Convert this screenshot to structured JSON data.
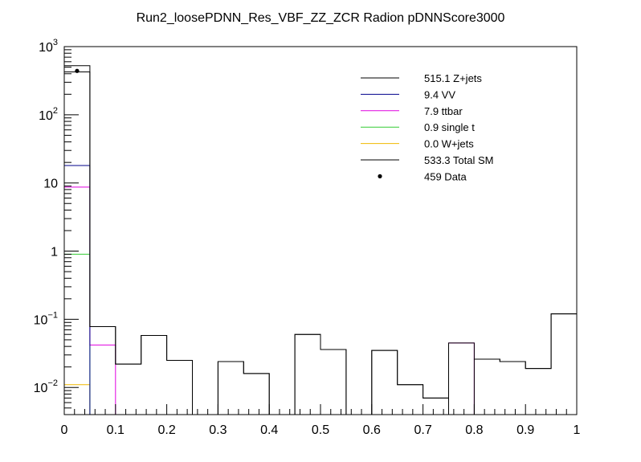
{
  "chart_data": {
    "type": "histogram",
    "title": "Run2_loosePDNN_Res_VBF_ZZ_ZCR Radion  pDNNScore3000",
    "xlabel": "",
    "ylabel": "",
    "xlim": [
      0,
      1
    ],
    "ylim": [
      0.004,
      1000
    ],
    "yscale": "log",
    "x_ticks": [
      "0",
      "0.1",
      "0.2",
      "0.3",
      "0.4",
      "0.5",
      "0.6",
      "0.7",
      "0.8",
      "0.9",
      "1"
    ],
    "y_ticks": [
      {
        "value": 0.01,
        "base": "10",
        "exp": "−2"
      },
      {
        "value": 0.1,
        "base": "10",
        "exp": "−1"
      },
      {
        "value": 1,
        "base": "1",
        "exp": ""
      },
      {
        "value": 10,
        "base": "10",
        "exp": ""
      },
      {
        "value": 100,
        "base": "10",
        "exp": "2"
      },
      {
        "value": 1000,
        "base": "10",
        "exp": "3"
      }
    ],
    "bin_edges": [
      0,
      0.05,
      0.1,
      0.15,
      0.2,
      0.25,
      0.3,
      0.35,
      0.4,
      0.45,
      0.5,
      0.55,
      0.6,
      0.65,
      0.7,
      0.75,
      0.8,
      0.85,
      0.9,
      0.95,
      1.0
    ],
    "series": [
      {
        "name": "Z+jets",
        "color": "#000000",
        "values": [
          425,
          0.078,
          0.022,
          0.058,
          0.025,
          0,
          0.024,
          0.016,
          0,
          0.06,
          0.036,
          0,
          0.035,
          0.011,
          0.007,
          0,
          0.026,
          0.024,
          0.019,
          0.12
        ]
      },
      {
        "name": "VV",
        "color": "#00008b",
        "values": [
          18,
          0,
          0,
          0,
          0,
          0,
          0,
          0,
          0,
          0,
          0,
          0,
          0,
          0,
          0,
          0,
          0,
          0,
          0,
          0
        ]
      },
      {
        "name": "ttbar",
        "color": "#e000e0",
        "values": [
          8.7,
          0.042,
          0,
          0,
          0,
          0,
          0,
          0,
          0,
          0,
          0,
          0,
          0,
          0,
          0,
          0.045,
          0,
          0,
          0,
          0
        ]
      },
      {
        "name": "single t",
        "color": "#33cc33",
        "values": [
          0.9,
          0,
          0,
          0,
          0,
          0,
          0,
          0,
          0,
          0,
          0,
          0,
          0,
          0,
          0,
          0,
          0,
          0,
          0,
          0
        ]
      },
      {
        "name": "W+jets",
        "color": "#f0b800",
        "values": [
          0.011,
          0,
          0,
          0,
          0,
          0,
          0,
          0,
          0,
          0,
          0,
          0,
          0,
          0,
          0,
          0,
          0,
          0,
          0,
          0
        ]
      },
      {
        "name": "Total SM",
        "color": "#000000",
        "values": [
          525,
          0.078,
          0.022,
          0.058,
          0.025,
          0,
          0.024,
          0.016,
          0,
          0.06,
          0.036,
          0,
          0.035,
          0.011,
          0.007,
          0.045,
          0.026,
          0.024,
          0.019,
          0.12
        ]
      }
    ],
    "data_points": [
      {
        "x": 0.025,
        "y": 440
      }
    ],
    "legend": {
      "placement": "top-right",
      "entries": [
        {
          "label": "515.1 Z+jets",
          "color": "#000000",
          "style": "line"
        },
        {
          "label": "9.4 VV",
          "color": "#00008b",
          "style": "line"
        },
        {
          "label": "7.9 ttbar",
          "color": "#e000e0",
          "style": "line"
        },
        {
          "label": "0.9 single t",
          "color": "#33cc33",
          "style": "line"
        },
        {
          "label": "0.0 W+jets",
          "color": "#f0b800",
          "style": "line"
        },
        {
          "label": "533.3 Total SM",
          "color": "#000000",
          "style": "line"
        },
        {
          "label": "459 Data",
          "color": "#000000",
          "style": "marker"
        }
      ]
    }
  }
}
